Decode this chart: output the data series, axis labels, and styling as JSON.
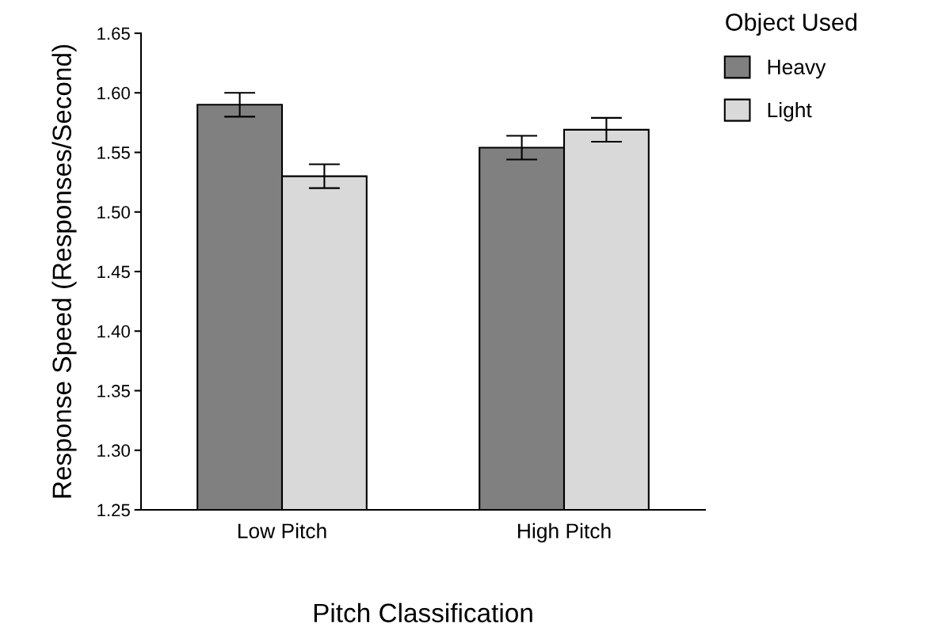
{
  "chart_data": {
    "type": "bar",
    "xlabel": "Pitch Classification",
    "ylabel": "Response Speed (Responses/Second)",
    "legend_title": "Object Used",
    "categories": [
      "Low Pitch",
      "High Pitch"
    ],
    "series": [
      {
        "name": "Heavy",
        "color": "#808080",
        "values": [
          1.59,
          1.554
        ],
        "errors": [
          0.01,
          0.01
        ]
      },
      {
        "name": "Light",
        "color": "#d9d9d9",
        "values": [
          1.53,
          1.569
        ],
        "errors": [
          0.01,
          0.01
        ]
      }
    ],
    "ylim": [
      1.25,
      1.65
    ],
    "yticks": [
      {
        "value": 1.25,
        "label": "1.25"
      },
      {
        "value": 1.3,
        "label": "1.30"
      },
      {
        "value": 1.35,
        "label": "1.35"
      },
      {
        "value": 1.4,
        "label": "1.40"
      },
      {
        "value": 1.45,
        "label": "1.45"
      },
      {
        "value": 1.5,
        "label": "1.50"
      },
      {
        "value": 1.55,
        "label": "1.55"
      },
      {
        "value": 1.6,
        "label": "1.60"
      },
      {
        "value": 1.65,
        "label": "1.65"
      }
    ],
    "grid": false,
    "legend": "top right"
  }
}
